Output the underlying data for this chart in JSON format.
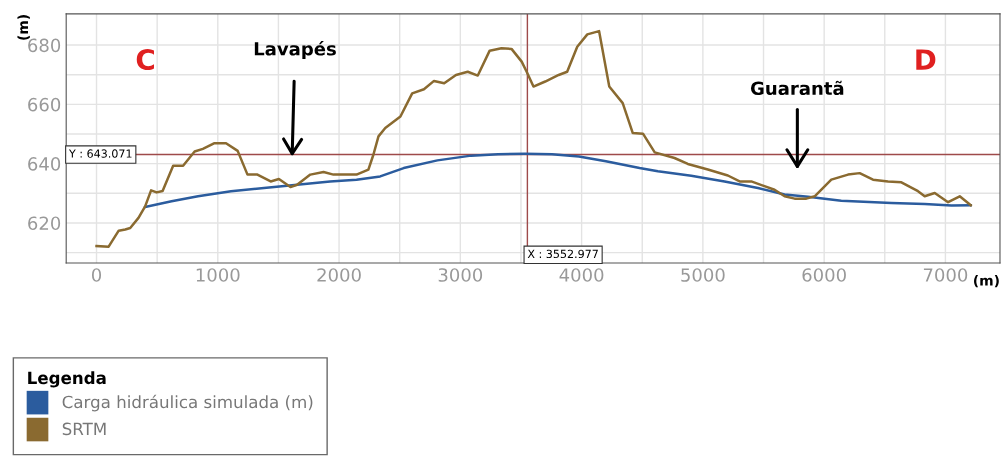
{
  "chart_data": {
    "type": "line",
    "xlabel": "(m)",
    "ylabel": "(m)",
    "legend_title": "Legenda",
    "xlim": [
      -250,
      7450
    ],
    "ylim": [
      606.5,
      690.5
    ],
    "xticks": [
      0,
      {
        "value": 500,
        "label": null
      },
      1000,
      {
        "value": 1500,
        "label": null
      },
      2000,
      {
        "value": 2500,
        "label": null
      },
      3000,
      {
        "value": 3500,
        "label": null
      },
      4000,
      {
        "value": 4500,
        "label": null
      },
      5000,
      {
        "value": 5500,
        "label": null
      },
      6000,
      {
        "value": 6500,
        "label": null
      },
      7000
    ],
    "yticks": [
      {
        "value": 610,
        "label": null
      },
      620,
      {
        "value": 630,
        "label": null
      },
      640,
      {
        "value": 650,
        "label": null
      },
      660,
      {
        "value": 670,
        "label": null
      },
      680
    ],
    "grid": true,
    "legend": "bottom left",
    "line_style": "solid",
    "marker": "none",
    "series": [
      {
        "name": "Carga hidráulica simulada (m)",
        "color": "#2b5c9e",
        "x": [
          401,
          619,
          837,
          1109,
          1381,
          1654,
          1926,
          2144,
          2339,
          2533,
          2811,
          3089,
          3311,
          3533,
          3756,
          3978,
          4200,
          4478,
          4629,
          4904,
          5179,
          5454,
          5674,
          5867,
          6141,
          6554,
          6829,
          7050,
          7209
        ],
        "values": [
          625.4,
          627.3,
          629,
          630.7,
          631.8,
          632.9,
          634,
          634.6,
          635.7,
          638.5,
          641.1,
          642.7,
          643.2,
          643.3,
          643.2,
          642.4,
          640.8,
          638.5,
          637.4,
          635.9,
          634,
          631.8,
          629.6,
          628.8,
          627.5,
          626.7,
          626.4,
          625.9,
          626
        ]
      },
      {
        "name": "SRTM",
        "color": "#8a6a30",
        "x": [
          0,
          100,
          183,
          237,
          278,
          346,
          401,
          450,
          496,
          545,
          632,
          714,
          809,
          877,
          973,
          1068,
          1164,
          1245,
          1327,
          1436,
          1504,
          1599,
          1654,
          1763,
          1872,
          1954,
          2144,
          2242,
          2283,
          2325,
          2381,
          2506,
          2603,
          2700,
          2783,
          2867,
          2964,
          3061,
          3144,
          3242,
          3339,
          3422,
          3506,
          3547,
          3603,
          3700,
          3811,
          3881,
          3964,
          4047,
          4144,
          4228,
          4339,
          4422,
          4506,
          4603,
          4766,
          4876,
          5041,
          5206,
          5303,
          5399,
          5591,
          5674,
          5757,
          5853,
          5922,
          6059,
          6197,
          6293,
          6403,
          6527,
          6637,
          6774,
          6829,
          6912,
          7022,
          7118,
          7209
        ],
        "values": [
          612.2,
          612,
          617.4,
          617.8,
          618.3,
          621.7,
          625.6,
          631,
          630.3,
          630.8,
          639.3,
          639.3,
          644.1,
          645,
          646.9,
          646.9,
          644.3,
          636.3,
          636.3,
          634,
          634.8,
          632.1,
          632.9,
          636.3,
          637.2,
          636.3,
          636.3,
          638,
          643,
          649.2,
          652,
          655.9,
          663.7,
          665.1,
          667.9,
          667.1,
          669.9,
          671,
          669.7,
          678.1,
          678.9,
          678.7,
          674.4,
          671,
          666,
          667.7,
          669.9,
          671,
          679.4,
          683.6,
          684.7,
          666,
          660.4,
          650.3,
          650.1,
          643.8,
          641.9,
          639.9,
          638,
          636,
          634,
          634,
          631.2,
          629,
          628.2,
          628.2,
          629,
          634.6,
          636.3,
          636.8,
          634.6,
          634,
          633.7,
          630.7,
          629,
          630.1,
          627,
          629,
          626
        ]
      }
    ],
    "ref_lines": [
      {
        "axis": "y",
        "value": 643.071,
        "label": "Y : 643.071",
        "color": "#9e4a4a"
      },
      {
        "axis": "x",
        "value": 3552.977,
        "label": "X : 3552.977",
        "color": "#9e4a4a"
      }
    ],
    "annotations": [
      "C",
      "D",
      {
        "text": "Lavapés",
        "x": 1613,
        "y": 642.4
      },
      "Guarantã"
    ]
  }
}
